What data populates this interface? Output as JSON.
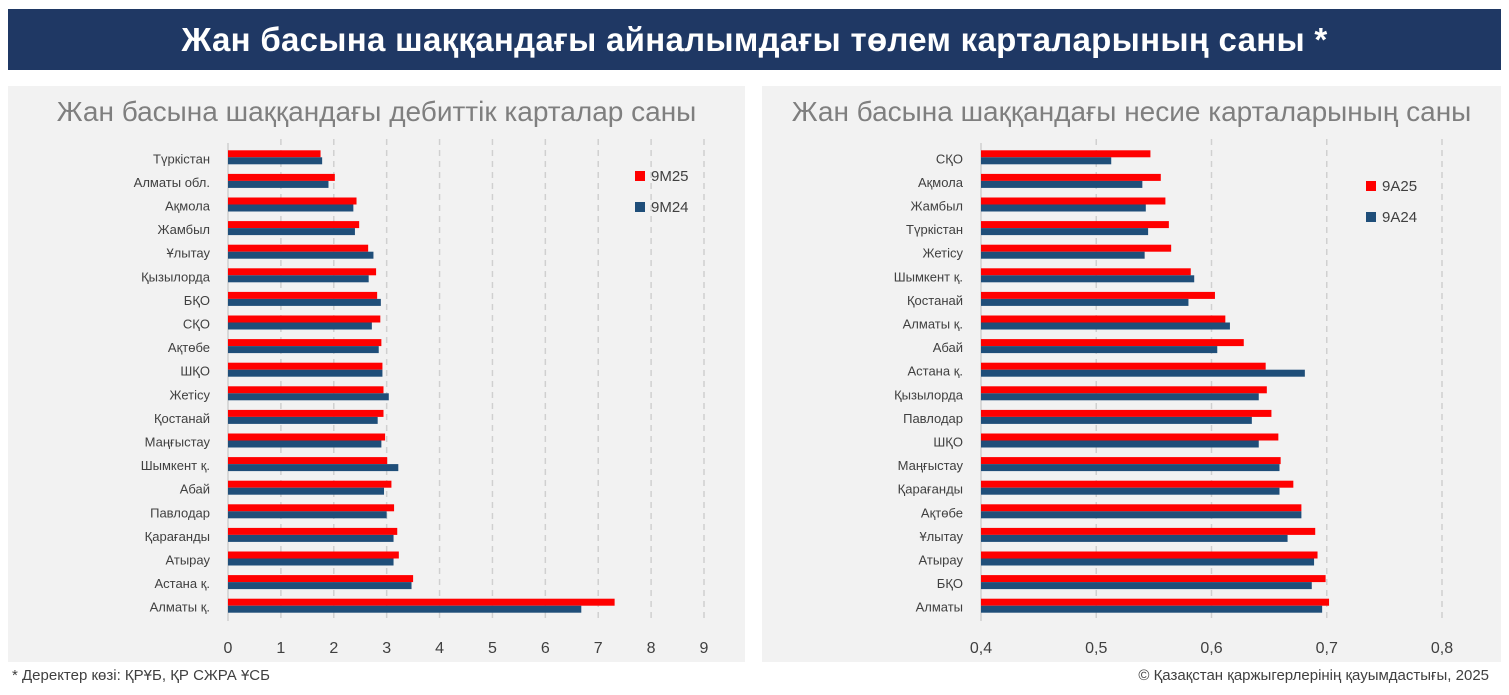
{
  "header": {
    "title": "Жан басына шаққандағы айналымдағы төлем карталарының саны *"
  },
  "footer": {
    "source": "* Деректер көзі: ҚРҰБ, ҚР СЖРА ҰСБ",
    "copyright": "© Қазақстан қаржыгерлерінің қауымдастығы, 2025"
  },
  "colors": {
    "series1": "#ff0000",
    "series2": "#1f4e79",
    "banner": "#1f3864",
    "panel": "#f2f2f2"
  },
  "chart_data": [
    {
      "type": "bar",
      "orientation": "horizontal",
      "title": "Жан басына шаққандағы дебиттік карталар саны",
      "categories": [
        "Түркістан",
        "Алматы обл.",
        "Ақмола",
        "Жамбыл",
        "Ұлытау",
        "Қызылорда",
        "БҚО",
        "СҚО",
        "Ақтөбе",
        "ШҚО",
        "Жетісу",
        "Қостанай",
        "Маңғыстау",
        "Шымкент қ.",
        "Абай",
        "Павлодар",
        "Қарағанды",
        "Атырау",
        "Астана қ.",
        "Алматы қ."
      ],
      "series": [
        {
          "name": "9М25",
          "color": "#ff0000",
          "values": [
            1.75,
            2.02,
            2.43,
            2.48,
            2.65,
            2.8,
            2.82,
            2.88,
            2.9,
            2.92,
            2.94,
            2.94,
            2.97,
            3.01,
            3.09,
            3.14,
            3.2,
            3.23,
            3.5,
            7.31
          ]
        },
        {
          "name": "9М24",
          "color": "#1f4e79",
          "values": [
            1.78,
            1.9,
            2.37,
            2.4,
            2.75,
            2.66,
            2.89,
            2.72,
            2.85,
            2.92,
            3.04,
            2.83,
            2.9,
            3.22,
            2.95,
            3.0,
            3.13,
            3.13,
            3.47,
            6.68
          ]
        }
      ],
      "xlim": [
        0,
        9
      ],
      "xticks": [
        "0",
        "1",
        "2",
        "3",
        "4",
        "5",
        "6",
        "7",
        "8",
        "9"
      ],
      "grid": "vertical dashed",
      "legend": "top-right"
    },
    {
      "type": "bar",
      "orientation": "horizontal",
      "title": "Жан басына шаққандағы несие карталарының саны",
      "categories": [
        "СҚО",
        "Ақмола",
        "Жамбыл",
        "Түркістан",
        "Жетісу",
        "Шымкент қ.",
        "Қостанай",
        "Алматы қ.",
        "Абай",
        "Астана қ.",
        "Қызылорда",
        "Павлодар",
        "ШҚО",
        "Маңғыстау",
        "Қарағанды",
        "Ақтөбе",
        "Ұлытау",
        "Атырау",
        "БҚО",
        "Алматы"
      ],
      "series": [
        {
          "name": "9А25",
          "color": "#ff0000",
          "values": [
            0.547,
            0.556,
            0.56,
            0.563,
            0.565,
            0.582,
            0.603,
            0.612,
            0.628,
            0.647,
            0.648,
            0.652,
            0.658,
            0.66,
            0.671,
            0.678,
            0.69,
            0.692,
            0.699,
            0.702
          ]
        },
        {
          "name": "9А24",
          "color": "#1f4e79",
          "values": [
            0.513,
            0.54,
            0.543,
            0.545,
            0.542,
            0.585,
            0.58,
            0.616,
            0.605,
            0.681,
            0.641,
            0.635,
            0.641,
            0.659,
            0.659,
            0.678,
            0.666,
            0.689,
            0.687,
            0.696
          ]
        }
      ],
      "xlim": [
        0.4,
        0.8
      ],
      "xticks": [
        "0,4",
        "0,5",
        "0,6",
        "0,7",
        "0,8"
      ],
      "grid": "vertical dashed",
      "legend": "top-right"
    }
  ]
}
